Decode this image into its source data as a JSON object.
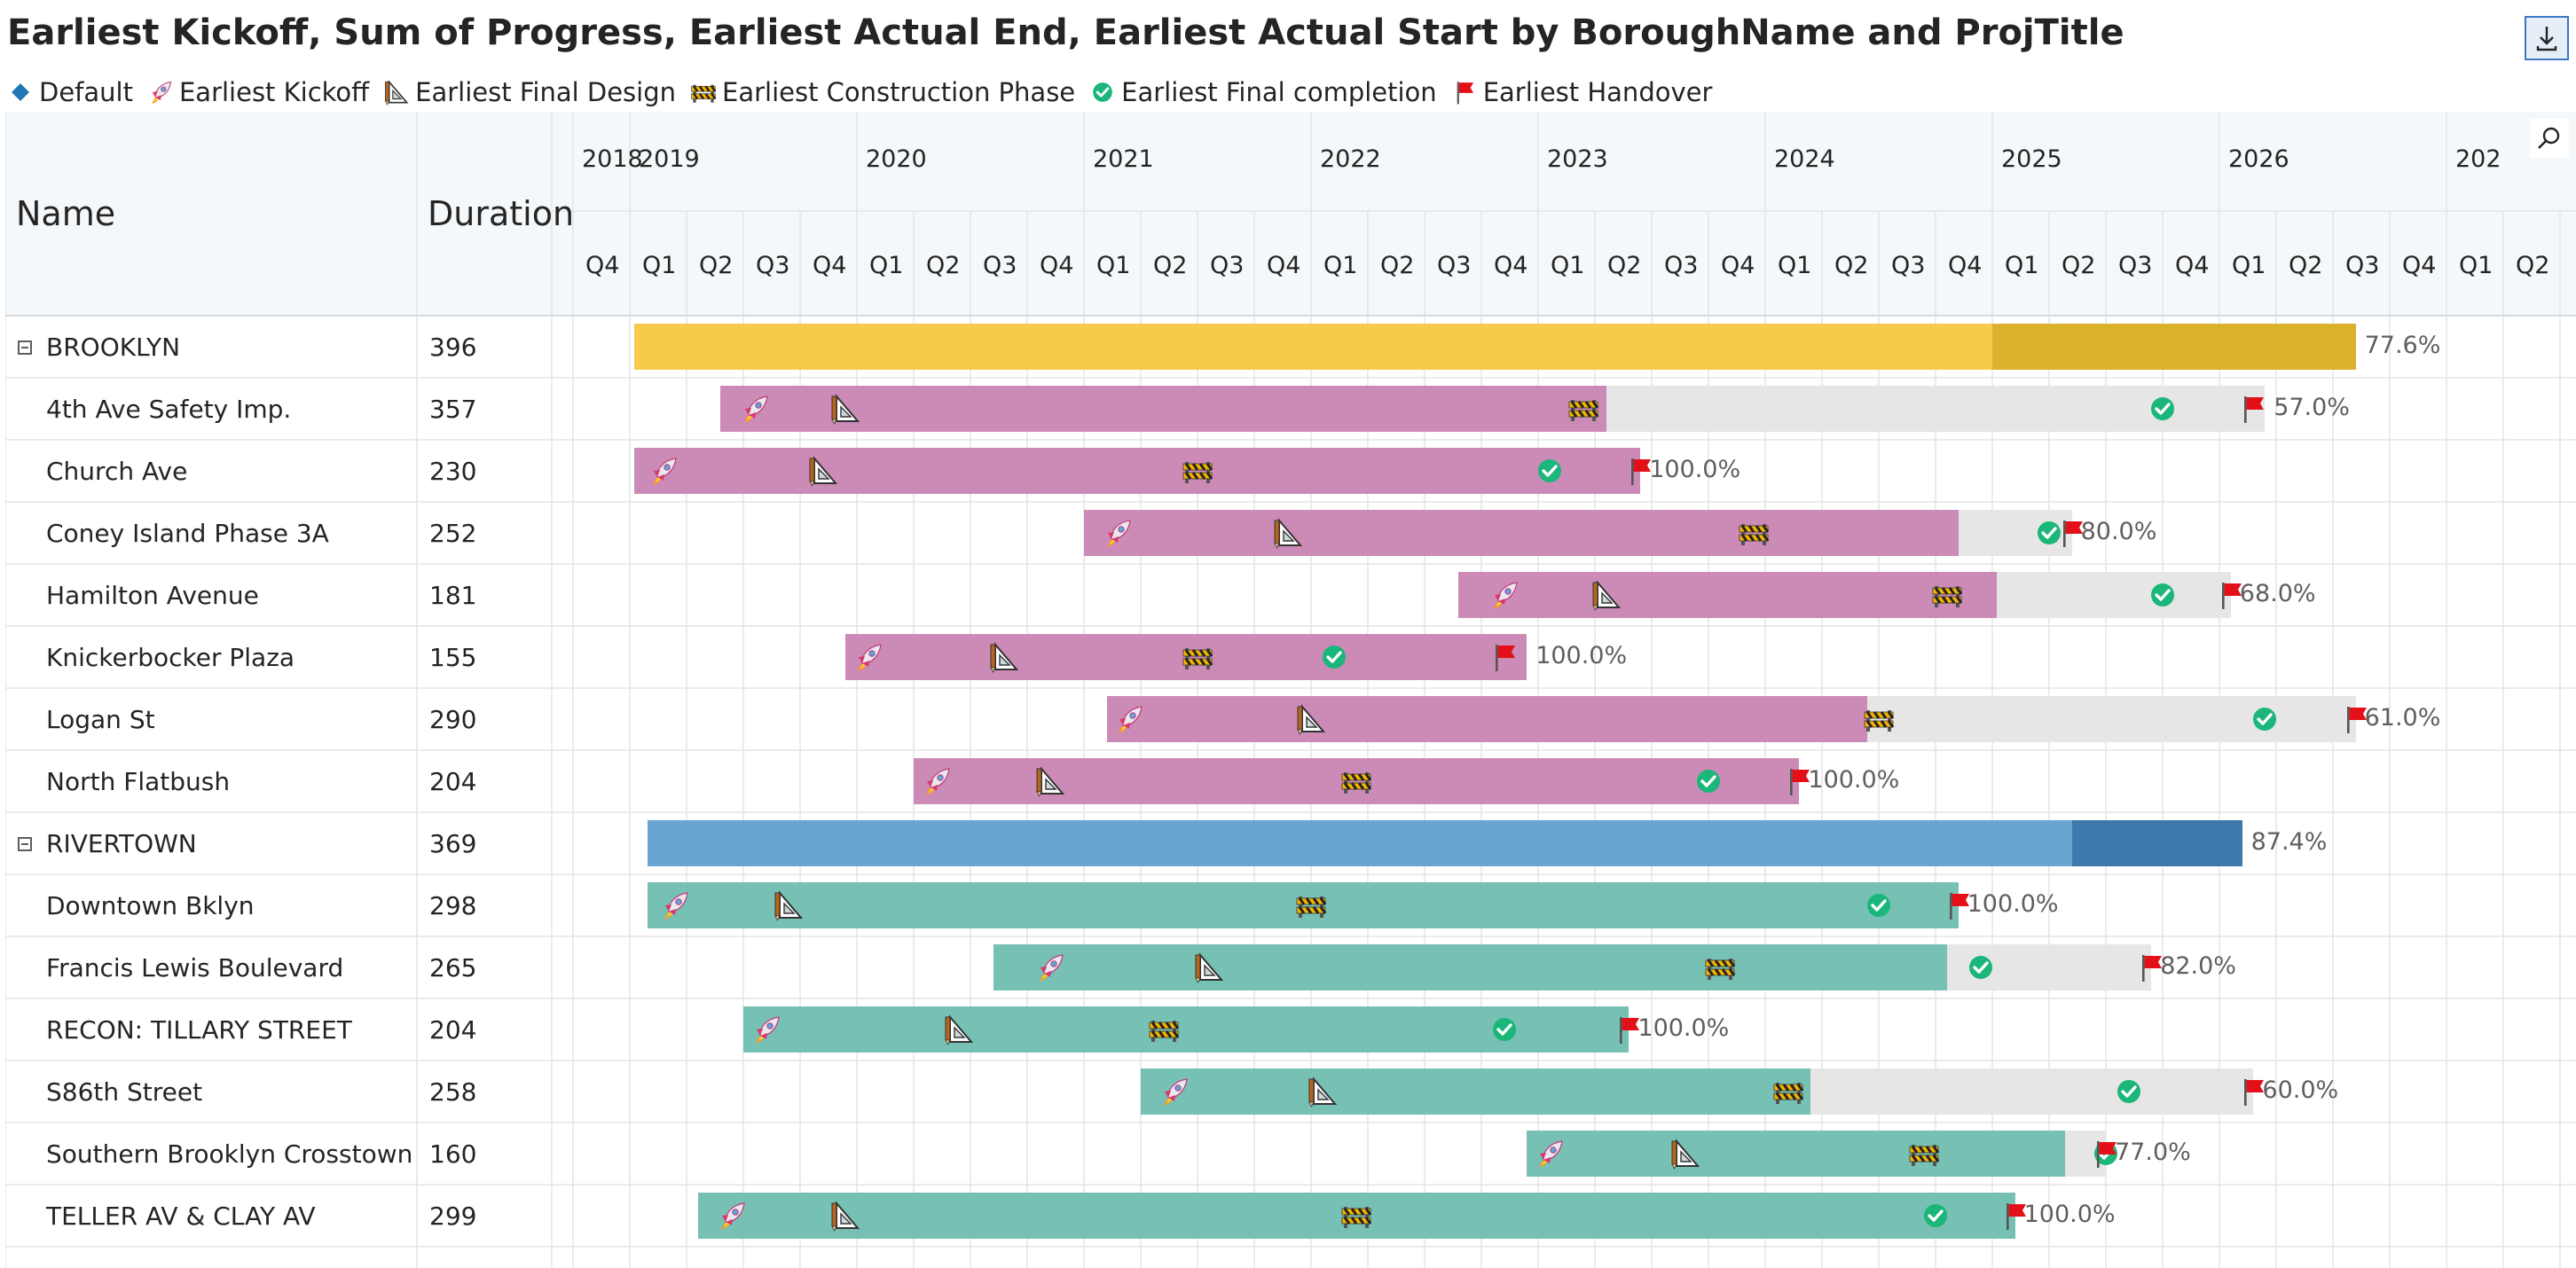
{
  "title": "Earliest Kickoff, Sum of Progress, Earliest Actual End, Earliest Actual Start by BoroughName and ProjTitle",
  "legend": [
    {
      "key": "default",
      "label": "Default",
      "icon": "diamond-icon",
      "color": "#1f77b4"
    },
    {
      "key": "kickoff",
      "label": "Earliest Kickoff",
      "icon": "rocket-icon"
    },
    {
      "key": "design",
      "label": "Earliest Final Design",
      "icon": "drafting-triangle-icon"
    },
    {
      "key": "construction",
      "label": "Earliest Construction Phase",
      "icon": "construction-barrier-icon"
    },
    {
      "key": "completion",
      "label": "Earliest Final completion",
      "icon": "check-circle-icon",
      "color": "#1ab67a"
    },
    {
      "key": "handover",
      "label": "Earliest Handover",
      "icon": "red-flag-icon",
      "color": "#e3101a"
    }
  ],
  "columns": {
    "name": "Name",
    "duration": "Duration"
  },
  "timeline": {
    "years": [
      "2018",
      "2019",
      "2020",
      "2021",
      "2022",
      "2023",
      "2024",
      "2025",
      "2026",
      "202"
    ],
    "quarters": [
      "Q4",
      "Q1",
      "Q2",
      "Q3",
      "Q4",
      "Q1",
      "Q2",
      "Q3",
      "Q4",
      "Q1",
      "Q2",
      "Q3",
      "Q4",
      "Q1",
      "Q2",
      "Q3",
      "Q4",
      "Q1",
      "Q2",
      "Q3",
      "Q4",
      "Q1",
      "Q2",
      "Q3",
      "Q4",
      "Q1",
      "Q2",
      "Q3",
      "Q4",
      "Q1",
      "Q2",
      "Q3",
      "Q4",
      "Q1",
      "Q2"
    ]
  },
  "colors": {
    "brooklyn_bar": "#f6ca4a",
    "brooklyn_dark": "#dbb22e",
    "brooklyn_child": "#cb8bb6",
    "rivertown_bar": "#6aa4d0",
    "rivertown_dark": "#3f78aa",
    "rivertown_child": "#76c0b4",
    "remaining": "#e6e6e6"
  },
  "rows": [
    {
      "type": "group",
      "name": "BROOKLYN",
      "duration": "396",
      "group": "brooklyn",
      "start": 2019.02,
      "end": 2026.6,
      "progress_end": 2025.0,
      "pct": "77.6%"
    },
    {
      "type": "item",
      "name": "4th Ave Safety Imp.",
      "duration": "357",
      "group": "brooklyn",
      "start": 2019.4,
      "end": 2026.2,
      "progress_end": 2023.3,
      "pct": "57.0%",
      "kickoff": 2019.55,
      "design": 2019.95,
      "construction": 2023.2,
      "completion": 2025.75,
      "handover": 2026.15
    },
    {
      "type": "item",
      "name": "Church Ave",
      "duration": "230",
      "group": "brooklyn",
      "start": 2019.02,
      "end": 2023.45,
      "progress_end": 2023.45,
      "pct": "100.0%",
      "kickoff": 2019.15,
      "design": 2019.85,
      "construction": 2021.5,
      "completion": 2023.05,
      "handover": 2023.45
    },
    {
      "type": "item",
      "name": "Coney Island Phase 3A",
      "duration": "252",
      "group": "brooklyn",
      "start": 2021.0,
      "end": 2025.35,
      "progress_end": 2024.85,
      "pct": "80.0%",
      "kickoff": 2021.15,
      "design": 2021.9,
      "construction": 2023.95,
      "completion": 2025.25,
      "handover": 2025.35
    },
    {
      "type": "item",
      "name": "Hamilton Avenue",
      "duration": "181",
      "group": "brooklyn",
      "start": 2022.65,
      "end": 2026.05,
      "progress_end": 2025.02,
      "pct": "68.0%",
      "kickoff": 2022.85,
      "design": 2023.3,
      "construction": 2024.8,
      "completion": 2025.75,
      "handover": 2026.05
    },
    {
      "type": "item",
      "name": "Knickerbocker Plaza",
      "duration": "155",
      "group": "brooklyn",
      "start": 2019.95,
      "end": 2022.95,
      "progress_end": 2022.95,
      "pct": "100.0%",
      "kickoff": 2020.05,
      "design": 2020.65,
      "construction": 2021.5,
      "completion": 2022.1,
      "handover": 2022.85
    },
    {
      "type": "item",
      "name": "Logan St",
      "duration": "290",
      "group": "brooklyn",
      "start": 2021.1,
      "end": 2026.6,
      "progress_end": 2024.45,
      "pct": "61.0%",
      "kickoff": 2021.2,
      "design": 2022.0,
      "construction": 2024.5,
      "completion": 2026.2,
      "handover": 2026.6
    },
    {
      "type": "item",
      "name": "North Flatbush",
      "duration": "204",
      "group": "brooklyn",
      "start": 2020.25,
      "end": 2024.15,
      "progress_end": 2024.15,
      "pct": "100.0%",
      "kickoff": 2020.35,
      "design": 2020.85,
      "construction": 2022.2,
      "completion": 2023.75,
      "handover": 2024.15
    },
    {
      "type": "group",
      "name": "RIVERTOWN",
      "duration": "369",
      "group": "rivertown",
      "start": 2019.08,
      "end": 2026.1,
      "progress_end": 2025.35,
      "pct": "87.4%"
    },
    {
      "type": "item",
      "name": "Downtown Bklyn",
      "duration": "298",
      "group": "rivertown",
      "start": 2019.08,
      "end": 2024.85,
      "progress_end": 2024.85,
      "pct": "100.0%",
      "kickoff": 2019.2,
      "design": 2019.7,
      "construction": 2022.0,
      "completion": 2024.5,
      "handover": 2024.85
    },
    {
      "type": "item",
      "name": "Francis Lewis Boulevard",
      "duration": "265",
      "group": "rivertown",
      "start": 2020.6,
      "end": 2025.7,
      "progress_end": 2024.8,
      "pct": "82.0%",
      "kickoff": 2020.85,
      "design": 2021.55,
      "construction": 2023.8,
      "completion": 2024.95,
      "handover": 2025.7
    },
    {
      "type": "item",
      "name": "RECON: TILLARY STREET",
      "duration": "204",
      "group": "rivertown",
      "start": 2019.5,
      "end": 2023.4,
      "progress_end": 2023.4,
      "pct": "100.0%",
      "kickoff": 2019.6,
      "design": 2020.45,
      "construction": 2021.35,
      "completion": 2022.85,
      "handover": 2023.4
    },
    {
      "type": "item",
      "name": "S86th Street",
      "duration": "258",
      "group": "rivertown",
      "start": 2021.25,
      "end": 2026.15,
      "progress_end": 2024.2,
      "pct": "60.0%",
      "kickoff": 2021.4,
      "design": 2022.05,
      "construction": 2024.1,
      "completion": 2025.6,
      "handover": 2026.15
    },
    {
      "type": "item",
      "name": "Southern Brooklyn Crosstown",
      "duration": "160",
      "group": "rivertown",
      "start": 2022.95,
      "end": 2025.5,
      "progress_end": 2025.32,
      "pct": "77.0%",
      "kickoff": 2023.05,
      "design": 2023.65,
      "construction": 2024.7,
      "completion": 2025.5,
      "handover": 2025.5
    },
    {
      "type": "item",
      "name": "TELLER AV & CLAY AV",
      "duration": "299",
      "group": "rivertown",
      "start": 2019.3,
      "end": 2025.1,
      "progress_end": 2025.1,
      "pct": "100.0%",
      "kickoff": 2019.45,
      "design": 2019.95,
      "construction": 2022.2,
      "completion": 2024.75,
      "handover": 2025.1
    }
  ]
}
